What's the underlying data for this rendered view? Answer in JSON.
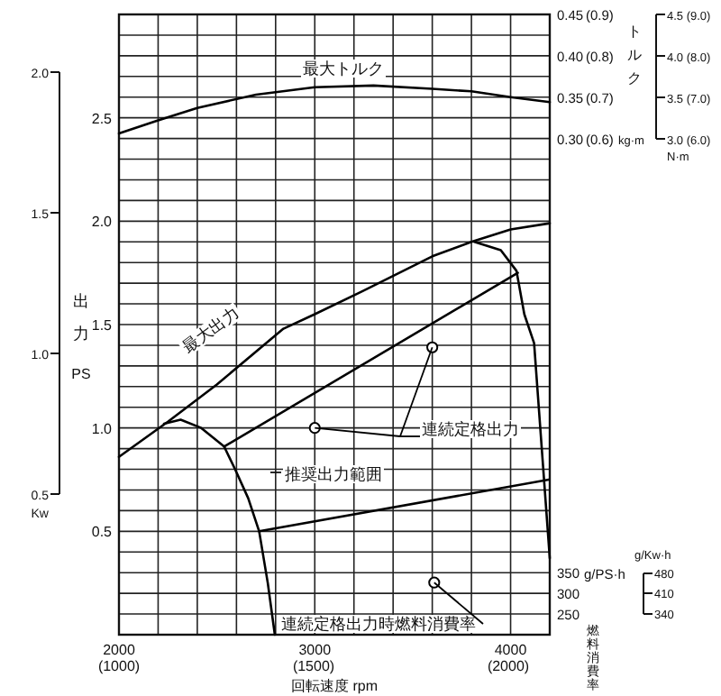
{
  "chart_data": {
    "type": "line",
    "xlabel": "回転速度 rpm",
    "ylabel": "出力 PS",
    "y2label": "トルク",
    "y3label": "燃料消費率",
    "xlim": [
      2000,
      4200
    ],
    "xticks": [
      2000,
      {
        "value": 2200,
        "label": null
      },
      {
        "value": 2400,
        "label": null
      },
      {
        "value": 2600,
        "label": null
      },
      {
        "value": 2800,
        "label": null
      },
      3000,
      {
        "value": 3200,
        "label": null
      },
      {
        "value": 3400,
        "label": null
      },
      {
        "value": 3600,
        "label": null
      },
      {
        "value": 3800,
        "label": null
      },
      4000,
      {
        "value": 4200,
        "label": null
      }
    ],
    "ylim": [
      0,
      3
    ],
    "yticks": [
      {
        "value": 0,
        "label": null
      },
      {
        "value": 0.1,
        "label": null
      },
      {
        "value": 0.2,
        "label": null
      },
      {
        "value": 0.3,
        "label": null
      },
      {
        "value": 0.4,
        "label": null
      },
      0.5,
      {
        "value": 0.6,
        "label": null
      },
      {
        "value": 0.7,
        "label": null
      },
      {
        "value": 0.8,
        "label": null
      },
      {
        "value": 0.9,
        "label": null
      },
      {
        "value": 1.0,
        "label": "1.0"
      },
      {
        "value": 1.1,
        "label": null
      },
      {
        "value": 1.2,
        "label": null
      },
      {
        "value": 1.3,
        "label": null
      },
      {
        "value": 1.4,
        "label": null
      },
      1.5,
      {
        "value": 1.6,
        "label": null
      },
      {
        "value": 1.7,
        "label": null
      },
      {
        "value": 1.8,
        "label": null
      },
      {
        "value": 1.9,
        "label": null
      },
      {
        "value": 2.0,
        "label": "2.0"
      },
      {
        "value": 2.1,
        "label": null
      },
      {
        "value": 2.2,
        "label": null
      },
      {
        "value": 2.3,
        "label": null
      },
      {
        "value": 2.4,
        "label": null
      },
      2.5,
      {
        "value": 2.6,
        "label": null
      },
      {
        "value": 2.7,
        "label": null
      },
      {
        "value": 2.8,
        "label": null
      },
      {
        "value": 2.9,
        "label": null
      },
      {
        "value": 3.0,
        "label": null
      }
    ],
    "y2lim": [
      -0.3,
      0.45
    ],
    "y2ticks": [
      0.45,
      {
        "value": 0.4,
        "label": "0.40"
      },
      0.35,
      {
        "value": 0.3,
        "label": "0.30"
      }
    ],
    "y3lim": [
      200,
      1700
    ],
    "y3ticks": [
      350,
      300,
      250
    ],
    "grid": true,
    "marker": "none",
    "series": [
      {
        "name": "最大トルク",
        "axis": "y2",
        "color": "#000000",
        "x": [
          2000,
          2200,
          2400,
          2700,
          3000,
          3300,
          3600,
          3800,
          4000,
          4200
        ],
        "values": [
          0.306,
          0.322,
          0.337,
          0.353,
          0.362,
          0.364,
          0.36,
          0.357,
          0.35,
          0.344
        ]
      },
      {
        "name": "最大出力",
        "color": "#000000",
        "x": [
          2000,
          2250,
          2500,
          2840,
          3000,
          3240,
          3600,
          3800,
          4000,
          4200
        ],
        "values": [
          0.86,
          1.03,
          1.21,
          1.48,
          1.55,
          1.66,
          1.83,
          1.9,
          1.96,
          1.99
        ]
      },
      {
        "name": "連続定格出力",
        "type": "scatter",
        "marker": "circle",
        "color": "#000000",
        "x": [
          3000,
          3600
        ],
        "values": [
          1.0,
          1.39
        ]
      },
      {
        "name": "連続定格出力時燃料消費率",
        "type": "scatter",
        "marker": "circle",
        "axis": "y3",
        "color": "#000000",
        "x": [
          3610
        ],
        "values": [
          326
        ]
      },
      {
        "color": "#000000",
        "x": [
          2230,
          2315,
          2420,
          2537,
          2593,
          2660,
          2716,
          2760,
          2796
        ],
        "values": [
          1.02,
          1.04,
          1.0,
          0.91,
          0.8,
          0.66,
          0.5,
          0.25,
          0
        ]
      },
      {
        "color": "#000000",
        "x": [
          2537,
          4037
        ],
        "values": [
          0.91,
          1.75
        ]
      },
      {
        "color": "#000000",
        "x": [
          2716,
          4195
        ],
        "values": [
          0.5,
          0.75
        ]
      },
      {
        "color": "#000000",
        "x": [
          3815,
          3950,
          4030,
          4070,
          4120,
          4200
        ],
        "values": [
          1.9,
          1.86,
          1.76,
          1.55,
          1.41,
          0.37
        ]
      }
    ],
    "annotations": [
      "推奨出力範囲",
      "(1000)",
      "(1500)",
      "(2000)",
      "(0.9)",
      "(0.8)",
      "(0.7)",
      "(0.6)",
      "kg·m",
      "2.0",
      "1.5",
      "1.0",
      "0.5",
      "Kw",
      "4.5 (9.0)",
      "4.0 (8.0)",
      "3.5 (7.0)",
      "3.0 (6.0)",
      "N·m",
      "g/PS·h",
      "g/Kw·h",
      "480",
      "410",
      "340"
    ]
  }
}
